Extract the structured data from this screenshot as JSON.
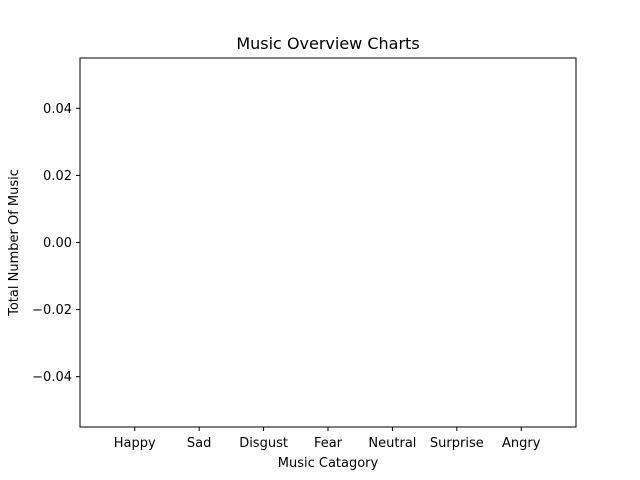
{
  "chart_data": {
    "type": "bar",
    "title": "Music Overview Charts",
    "xlabel": "Music Catagory",
    "ylabel": "Total Number Of Music",
    "categories": [
      "Happy",
      "Sad",
      "Disgust",
      "Fear",
      "Neutral",
      "Surprise",
      "Angry"
    ],
    "values": [
      0,
      0,
      0,
      0,
      0,
      0,
      0
    ],
    "ylim": [
      -0.055,
      0.055
    ],
    "yticks": [
      0.04,
      0.02,
      0.0,
      -0.02,
      -0.04
    ],
    "ytick_labels": [
      "0.04",
      "0.02",
      "0.00",
      "−0.02",
      "−0.04"
    ],
    "grid": false,
    "legend": "none"
  }
}
